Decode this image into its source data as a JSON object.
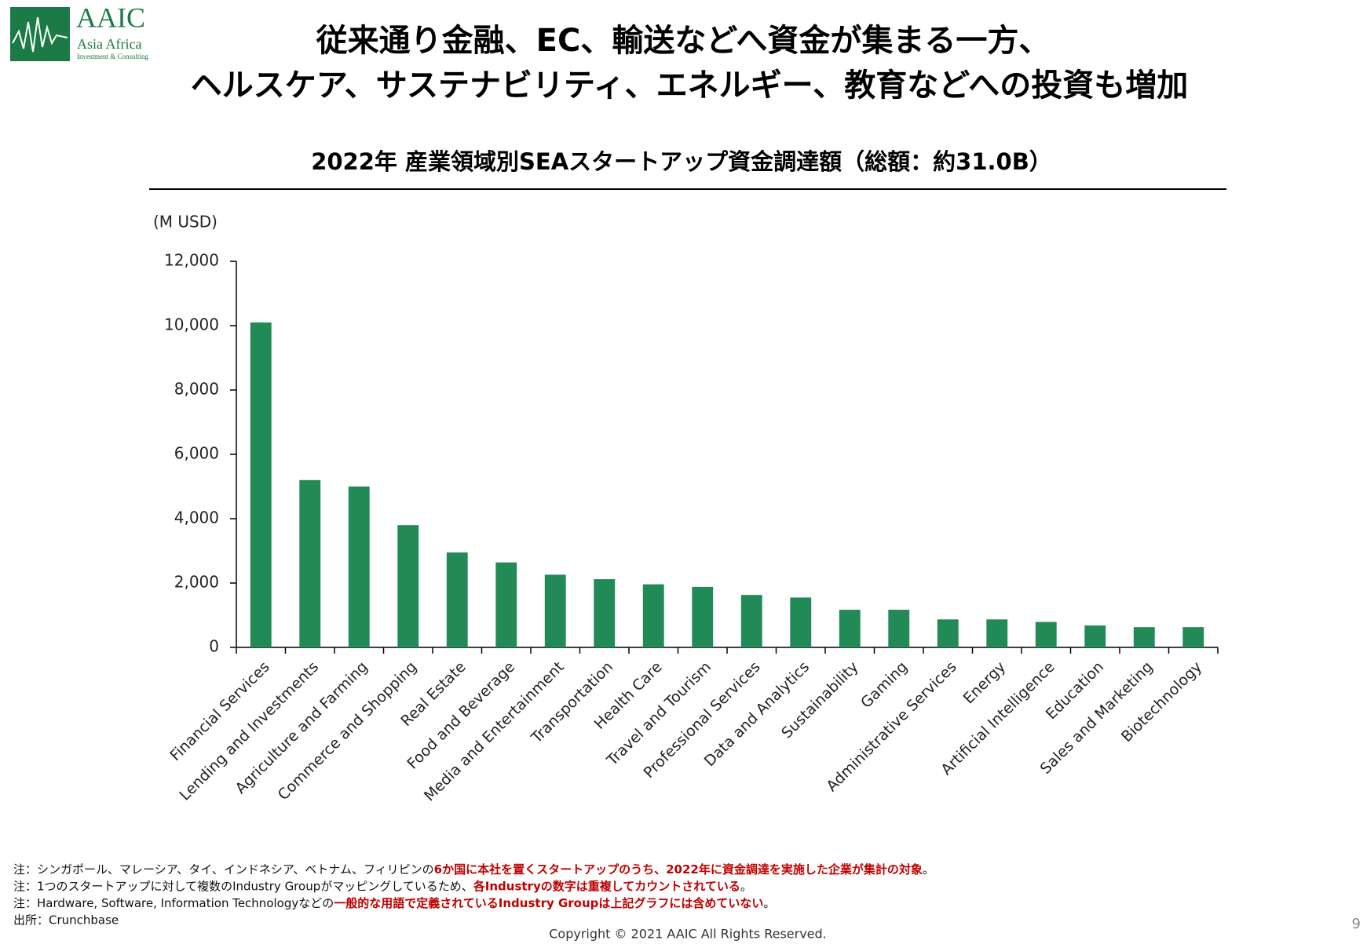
{
  "logo": {
    "name": "AAIC",
    "line1": "Asia Africa",
    "line2": "Investment & Consulting"
  },
  "header": {
    "title_lines": [
      "従来通り金融、EC、輸送などへ資金が集まる一方、",
      "ヘルスケア、サステナビリティ、エネルギー、教育などへの投資も増加"
    ]
  },
  "chart_data": {
    "type": "bar",
    "title": "2022年 産業領域別SEAスタートアップ資金調達額（総額：約31.0B）",
    "y_label": "(M USD)",
    "categories": [
      "Financial Services",
      "Lending and Investments",
      "Agriculture and Farming",
      "Commerce and Shopping",
      "Real Estate",
      "Food and Beverage",
      "Media and Entertainment",
      "Transportation",
      "Health Care",
      "Travel and Tourism",
      "Professional Services",
      "Data and Analytics",
      "Sustainability",
      "Gaming",
      "Administrative Services",
      "Energy",
      "Artificial Intelligence",
      "Education",
      "Sales and Marketing",
      "Biotechnology"
    ],
    "values": [
      10100,
      5200,
      5000,
      3800,
      2950,
      2640,
      2260,
      2120,
      1960,
      1880,
      1630,
      1550,
      1170,
      1170,
      870,
      870,
      790,
      680,
      630,
      630
    ],
    "color": "#218a57",
    "ylim": [
      0,
      12000
    ],
    "yticks": [
      0,
      {
        "value": 2000,
        "label": "2,000"
      },
      {
        "value": 4000,
        "label": "4,000"
      },
      {
        "value": 6000,
        "label": "6,000"
      },
      {
        "value": 8000,
        "label": "8,000"
      },
      {
        "value": 10000,
        "label": "10,000"
      },
      {
        "value": 12000,
        "label": "12,000"
      }
    ],
    "grid": false
  },
  "notes": {
    "highlight_color": "#c00000",
    "lines": [
      {
        "segments": [
          {
            "text": "注：シンガポール、マレーシア、タイ、インドネシア、ベトナム、フィリピンの",
            "emphasis": false
          },
          {
            "text": "6か国に本社を置くスタートアップのうち、2022年に資金調達を実施した企業が集計の対象",
            "emphasis": true
          },
          {
            "text": "。",
            "emphasis": false
          }
        ]
      },
      {
        "segments": [
          {
            "text": "注：1つのスタートアップに対して複数のIndustry Groupがマッピングしているため、",
            "emphasis": false
          },
          {
            "text": "各Industryの数字は重複してカウントされている",
            "emphasis": true
          },
          {
            "text": "。",
            "emphasis": false
          }
        ]
      },
      {
        "segments": [
          {
            "text": "注：Hardware, Software, Information Technologyなどの",
            "emphasis": false
          },
          {
            "text": "一般的な用語で定義されているIndustry Groupは上記グラフには含めていない",
            "emphasis": true
          },
          {
            "text": "。",
            "emphasis": false
          }
        ]
      },
      {
        "segments": [
          {
            "text": "出所：Crunchbase",
            "emphasis": false
          }
        ]
      }
    ]
  },
  "footer": {
    "copyright": "Copyright © 2021 AAIC All Rights Reserved.",
    "page": "9"
  }
}
